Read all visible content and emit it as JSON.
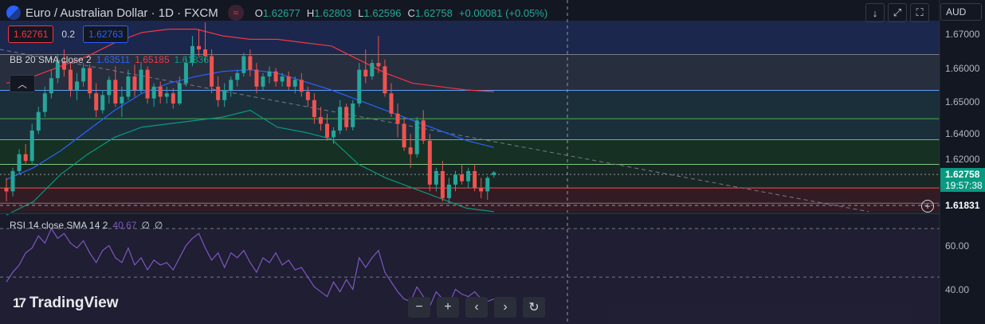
{
  "header": {
    "symbol_title": "Euro / Australian Dollar · 1D · FXCM",
    "ohlc": [
      {
        "label": "O",
        "value": "1.62677"
      },
      {
        "label": "H",
        "value": "1.62803"
      },
      {
        "label": "L",
        "value": "1.62596"
      },
      {
        "label": "C",
        "value": "1.62758"
      }
    ],
    "change": "+0.00081 (+0.05%)"
  },
  "trade": {
    "sell": "1.62761",
    "spread": "0.2",
    "buy": "1.62763"
  },
  "bb": {
    "label": "BB 20 SMA close 2",
    "basis": "1.63511",
    "upper": "1.65185",
    "lower": "1.61836"
  },
  "rsi": {
    "label": "RSI 14 close SMA 14 2",
    "value": "40.67",
    "ma1": "∅",
    "ma2": "∅"
  },
  "axis": {
    "currency": "AUD",
    "price_labels": [
      "1.67000",
      "1.66000",
      "1.65000",
      "1.64000",
      "1.63000",
      "1.62000"
    ],
    "rsi_labels": [
      "60.00",
      "40.00"
    ],
    "current_price": "1.62758",
    "countdown": "19:57:38",
    "crosshair_price": "1.61831"
  },
  "toolbar": {
    "down": "↓",
    "expand": "⤢",
    "frame": "⛶"
  },
  "nav": {
    "minus": "−",
    "plus": "+",
    "left": "‹",
    "right": "›",
    "reset": "↻"
  },
  "brand": "TradingView",
  "brand_mark": "17",
  "chart_data": {
    "type": "candlestick",
    "price_range": [
      1.6155,
      1.6725
    ],
    "rsi_range": [
      33,
      73
    ],
    "candles": [
      [
        1.623,
        1.626,
        1.619,
        1.622
      ],
      [
        1.622,
        1.629,
        1.6205,
        1.628
      ],
      [
        1.628,
        1.6345,
        1.627,
        1.633
      ],
      [
        1.633,
        1.636,
        1.63,
        1.631
      ],
      [
        1.631,
        1.642,
        1.63,
        1.64
      ],
      [
        1.64,
        1.647,
        1.639,
        1.6455
      ],
      [
        1.6455,
        1.653,
        1.644,
        1.651
      ],
      [
        1.651,
        1.658,
        1.6495,
        1.6555
      ],
      [
        1.6555,
        1.6625,
        1.654,
        1.6605
      ],
      [
        1.6605,
        1.664,
        1.656,
        1.658
      ],
      [
        1.658,
        1.66,
        1.65,
        1.652
      ],
      [
        1.652,
        1.657,
        1.649,
        1.6545
      ],
      [
        1.6545,
        1.66,
        1.653,
        1.6585
      ],
      [
        1.6585,
        1.6595,
        1.6495,
        1.651
      ],
      [
        1.651,
        1.654,
        1.644,
        1.646
      ],
      [
        1.646,
        1.652,
        1.645,
        1.6505
      ],
      [
        1.6505,
        1.656,
        1.648,
        1.655
      ],
      [
        1.655,
        1.659,
        1.647,
        1.648
      ],
      [
        1.648,
        1.653,
        1.644,
        1.65
      ],
      [
        1.65,
        1.658,
        1.649,
        1.656
      ],
      [
        1.656,
        1.6595,
        1.65,
        1.652
      ],
      [
        1.652,
        1.66,
        1.651,
        1.658
      ],
      [
        1.658,
        1.659,
        1.648,
        1.6495
      ],
      [
        1.6495,
        1.654,
        1.647,
        1.653
      ],
      [
        1.653,
        1.6545,
        1.648,
        1.65
      ],
      [
        1.65,
        1.653,
        1.648,
        1.651
      ],
      [
        1.651,
        1.6525,
        1.6465,
        1.648
      ],
      [
        1.648,
        1.656,
        1.6475,
        1.654
      ],
      [
        1.654,
        1.662,
        1.653,
        1.66
      ],
      [
        1.66,
        1.668,
        1.659,
        1.665
      ],
      [
        1.665,
        1.67,
        1.662,
        1.664
      ],
      [
        1.664,
        1.672,
        1.66,
        1.662
      ],
      [
        1.662,
        1.664,
        1.651,
        1.653
      ],
      [
        1.653,
        1.656,
        1.647,
        1.649
      ],
      [
        1.649,
        1.654,
        1.647,
        1.652
      ],
      [
        1.652,
        1.656,
        1.65,
        1.655
      ],
      [
        1.655,
        1.658,
        1.653,
        1.657
      ],
      [
        1.657,
        1.663,
        1.656,
        1.662
      ],
      [
        1.662,
        1.664,
        1.656,
        1.658
      ],
      [
        1.658,
        1.66,
        1.651,
        1.653
      ],
      [
        1.653,
        1.657,
        1.652,
        1.656
      ],
      [
        1.656,
        1.659,
        1.654,
        1.6575
      ],
      [
        1.6575,
        1.6585,
        1.653,
        1.6545
      ],
      [
        1.6545,
        1.657,
        1.653,
        1.656
      ],
      [
        1.656,
        1.6575,
        1.652,
        1.653
      ],
      [
        1.653,
        1.656,
        1.651,
        1.655
      ],
      [
        1.655,
        1.657,
        1.65,
        1.6515
      ],
      [
        1.6515,
        1.653,
        1.647,
        1.649
      ],
      [
        1.649,
        1.651,
        1.642,
        1.644
      ],
      [
        1.644,
        1.647,
        1.64,
        1.642
      ],
      [
        1.642,
        1.645,
        1.637,
        1.638
      ],
      [
        1.638,
        1.641,
        1.636,
        1.64
      ],
      [
        1.64,
        1.649,
        1.639,
        1.647
      ],
      [
        1.647,
        1.648,
        1.64,
        1.641
      ],
      [
        1.641,
        1.649,
        1.64,
        1.648
      ],
      [
        1.648,
        1.66,
        1.647,
        1.658
      ],
      [
        1.658,
        1.664,
        1.654,
        1.656
      ],
      [
        1.656,
        1.661,
        1.655,
        1.66
      ],
      [
        1.66,
        1.668,
        1.657,
        1.659
      ],
      [
        1.659,
        1.661,
        1.65,
        1.651
      ],
      [
        1.651,
        1.654,
        1.644,
        1.645
      ],
      [
        1.645,
        1.648,
        1.638,
        1.642
      ],
      [
        1.642,
        1.644,
        1.634,
        1.635
      ],
      [
        1.635,
        1.639,
        1.629,
        1.633
      ],
      [
        1.633,
        1.644,
        1.632,
        1.643
      ],
      [
        1.643,
        1.646,
        1.636,
        1.637
      ],
      [
        1.637,
        1.639,
        1.622,
        1.624
      ],
      [
        1.624,
        1.629,
        1.622,
        1.628
      ],
      [
        1.628,
        1.631,
        1.619,
        1.62
      ],
      [
        1.62,
        1.626,
        1.6185,
        1.624
      ],
      [
        1.624,
        1.628,
        1.622,
        1.627
      ],
      [
        1.627,
        1.63,
        1.624,
        1.625
      ],
      [
        1.625,
        1.629,
        1.623,
        1.628
      ],
      [
        1.628,
        1.63,
        1.622,
        1.623
      ],
      [
        1.623,
        1.626,
        1.62,
        1.622
      ],
      [
        1.622,
        1.6265,
        1.6195,
        1.626
      ],
      [
        1.6268,
        1.628,
        1.626,
        1.6276
      ]
    ],
    "bb_upper": [
      1.654,
      1.656,
      1.659,
      1.662,
      1.666,
      1.669,
      1.67,
      1.67,
      1.668,
      1.667,
      1.667,
      1.666,
      1.665,
      1.661,
      1.657,
      1.654,
      1.653,
      1.652,
      1.6515
    ],
    "bb_basis": [
      1.6255,
      1.629,
      1.634,
      1.64,
      1.646,
      1.651,
      1.654,
      1.656,
      1.6575,
      1.658,
      1.657,
      1.6545,
      1.652,
      1.649,
      1.646,
      1.643,
      1.64,
      1.637,
      1.635
    ],
    "bb_lower": [
      1.615,
      1.619,
      1.627,
      1.633,
      1.638,
      1.641,
      1.642,
      1.643,
      1.644,
      1.646,
      1.641,
      1.6395,
      1.6375,
      1.63,
      1.626,
      1.623,
      1.62,
      1.617,
      1.616
    ],
    "trendline": [
      [
        1.664,
        1.616
      ]
    ],
    "levels": [
      1.6625,
      1.6519,
      1.6435,
      1.6373,
      1.63,
      1.627,
      1.623,
      1.6185
    ],
    "zones": [
      {
        "from": 1.6625,
        "to": 1.6725,
        "color": "#1f2a55"
      },
      {
        "from": 1.6519,
        "to": 1.6625,
        "color": "#2b3243"
      },
      {
        "from": 1.6373,
        "to": 1.6519,
        "color": "#1d3440"
      },
      {
        "from": 1.63,
        "to": 1.6373,
        "color": "#183524"
      },
      {
        "from": 1.623,
        "to": 1.63,
        "color": "#1b2a25"
      },
      {
        "from": 1.616,
        "to": 1.623,
        "color": "#3a1c25"
      }
    ],
    "rsi": [
      48,
      52,
      55,
      60,
      62,
      67,
      64,
      70,
      66,
      68,
      64,
      62,
      65,
      60,
      56,
      61,
      63,
      58,
      56,
      62,
      55,
      58,
      53,
      57,
      55,
      56,
      53,
      58,
      63,
      66,
      68,
      62,
      57,
      60,
      54,
      60,
      58,
      61,
      56,
      52,
      58,
      56,
      60,
      55,
      57,
      53,
      54,
      50,
      46,
      44,
      42,
      48,
      44,
      49,
      45,
      58,
      54,
      58,
      61,
      52,
      48,
      44,
      41,
      40,
      46,
      42,
      38,
      44,
      41,
      39,
      45,
      43,
      42,
      44,
      41,
      40,
      41
    ]
  }
}
